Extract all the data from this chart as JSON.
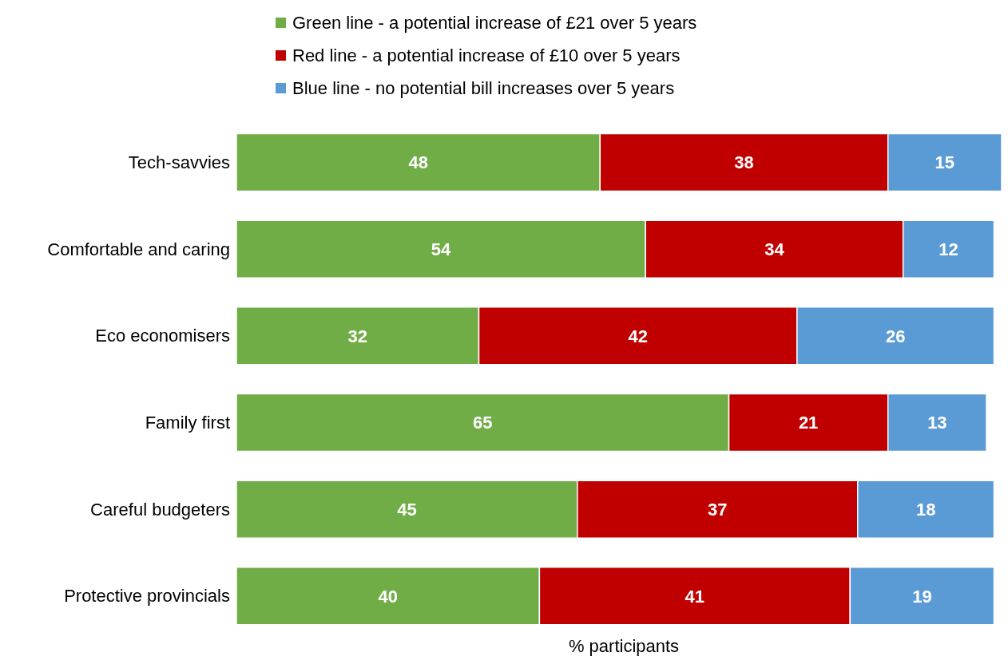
{
  "chart_data": {
    "type": "bar",
    "orientation": "horizontal",
    "stacked": true,
    "xlabel": "% participants",
    "categories": [
      "Tech-savvies",
      "Comfortable and caring",
      "Eco economisers",
      "Family first",
      "Careful budgeters",
      "Protective provincials"
    ],
    "series": [
      {
        "name": "Green line - a potential increase of £21 over 5 years",
        "color": "#70ad47",
        "values": [
          48,
          54,
          32,
          65,
          45,
          40
        ]
      },
      {
        "name": "Red line - a potential increase of £10 over 5 years",
        "color": "#c00000",
        "values": [
          38,
          34,
          42,
          21,
          37,
          41
        ]
      },
      {
        "name": "Blue line - no potential bill increases over 5 years",
        "color": "#5b9bd5",
        "values": [
          15,
          12,
          26,
          13,
          18,
          19
        ]
      }
    ],
    "xlim": [
      0,
      101
    ],
    "data_labels": true,
    "legend": "top",
    "tick_labels": "y"
  }
}
